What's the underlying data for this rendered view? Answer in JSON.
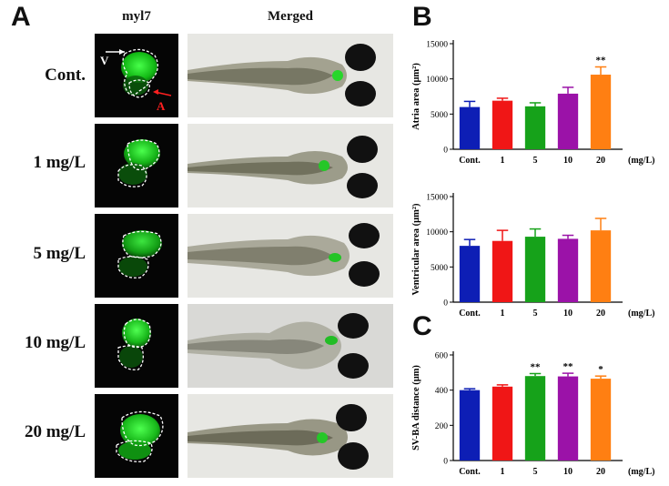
{
  "panels": {
    "a": "A",
    "b": "B",
    "c": "C"
  },
  "columns": {
    "fluorescence": "myl7",
    "merged": "Merged"
  },
  "rows": [
    {
      "label": "Cont."
    },
    {
      "label": "1 mg/L"
    },
    {
      "label": "5 mg/L"
    },
    {
      "label": "10 mg/L"
    },
    {
      "label": "20 mg/L"
    }
  ],
  "annotations": {
    "ventricle": "V",
    "atrium": "A"
  },
  "colors": {
    "blue": "#0d1eb5",
    "red": "#f01616",
    "green": "#16a21a",
    "purple": "#9b12a8",
    "orange": "#ff7f12"
  },
  "chart_data": [
    {
      "type": "bar",
      "categories": [
        "Cont.",
        "1",
        "5",
        "10",
        "20"
      ],
      "values": [
        6000,
        6900,
        6100,
        7900,
        10600
      ],
      "errors": [
        800,
        350,
        500,
        900,
        1100
      ],
      "significance": [
        "",
        "",
        "",
        "",
        "**"
      ],
      "ylabel": "Atria area (μm²)",
      "unit_label": "(mg/L)",
      "ylim": [
        0,
        15000
      ],
      "yticks": [
        "0",
        "5000",
        "10000",
        "15000"
      ]
    },
    {
      "type": "bar",
      "categories": [
        "Cont.",
        "1",
        "5",
        "10",
        "20"
      ],
      "values": [
        8000,
        8700,
        9300,
        9000,
        10200
      ],
      "errors": [
        900,
        1500,
        1100,
        500,
        1700
      ],
      "significance": [
        "",
        "",
        "",
        "",
        ""
      ],
      "ylabel": "Ventricular area (μm²)",
      "unit_label": "(mg/L)",
      "ylim": [
        0,
        15000
      ],
      "yticks": [
        "0",
        "5000",
        "10000",
        "15000"
      ]
    },
    {
      "type": "bar",
      "categories": [
        "Cont.",
        "1",
        "5",
        "10",
        "20"
      ],
      "values": [
        400,
        420,
        480,
        478,
        465
      ],
      "errors": [
        8,
        10,
        14,
        18,
        15
      ],
      "significance": [
        "",
        "",
        "**",
        "**",
        "*"
      ],
      "ylabel": "SV-BA distance (μm)",
      "unit_label": "(mg/L)",
      "ylim": [
        0,
        600
      ],
      "yticks": [
        "0",
        "200",
        "400",
        "600"
      ]
    }
  ]
}
